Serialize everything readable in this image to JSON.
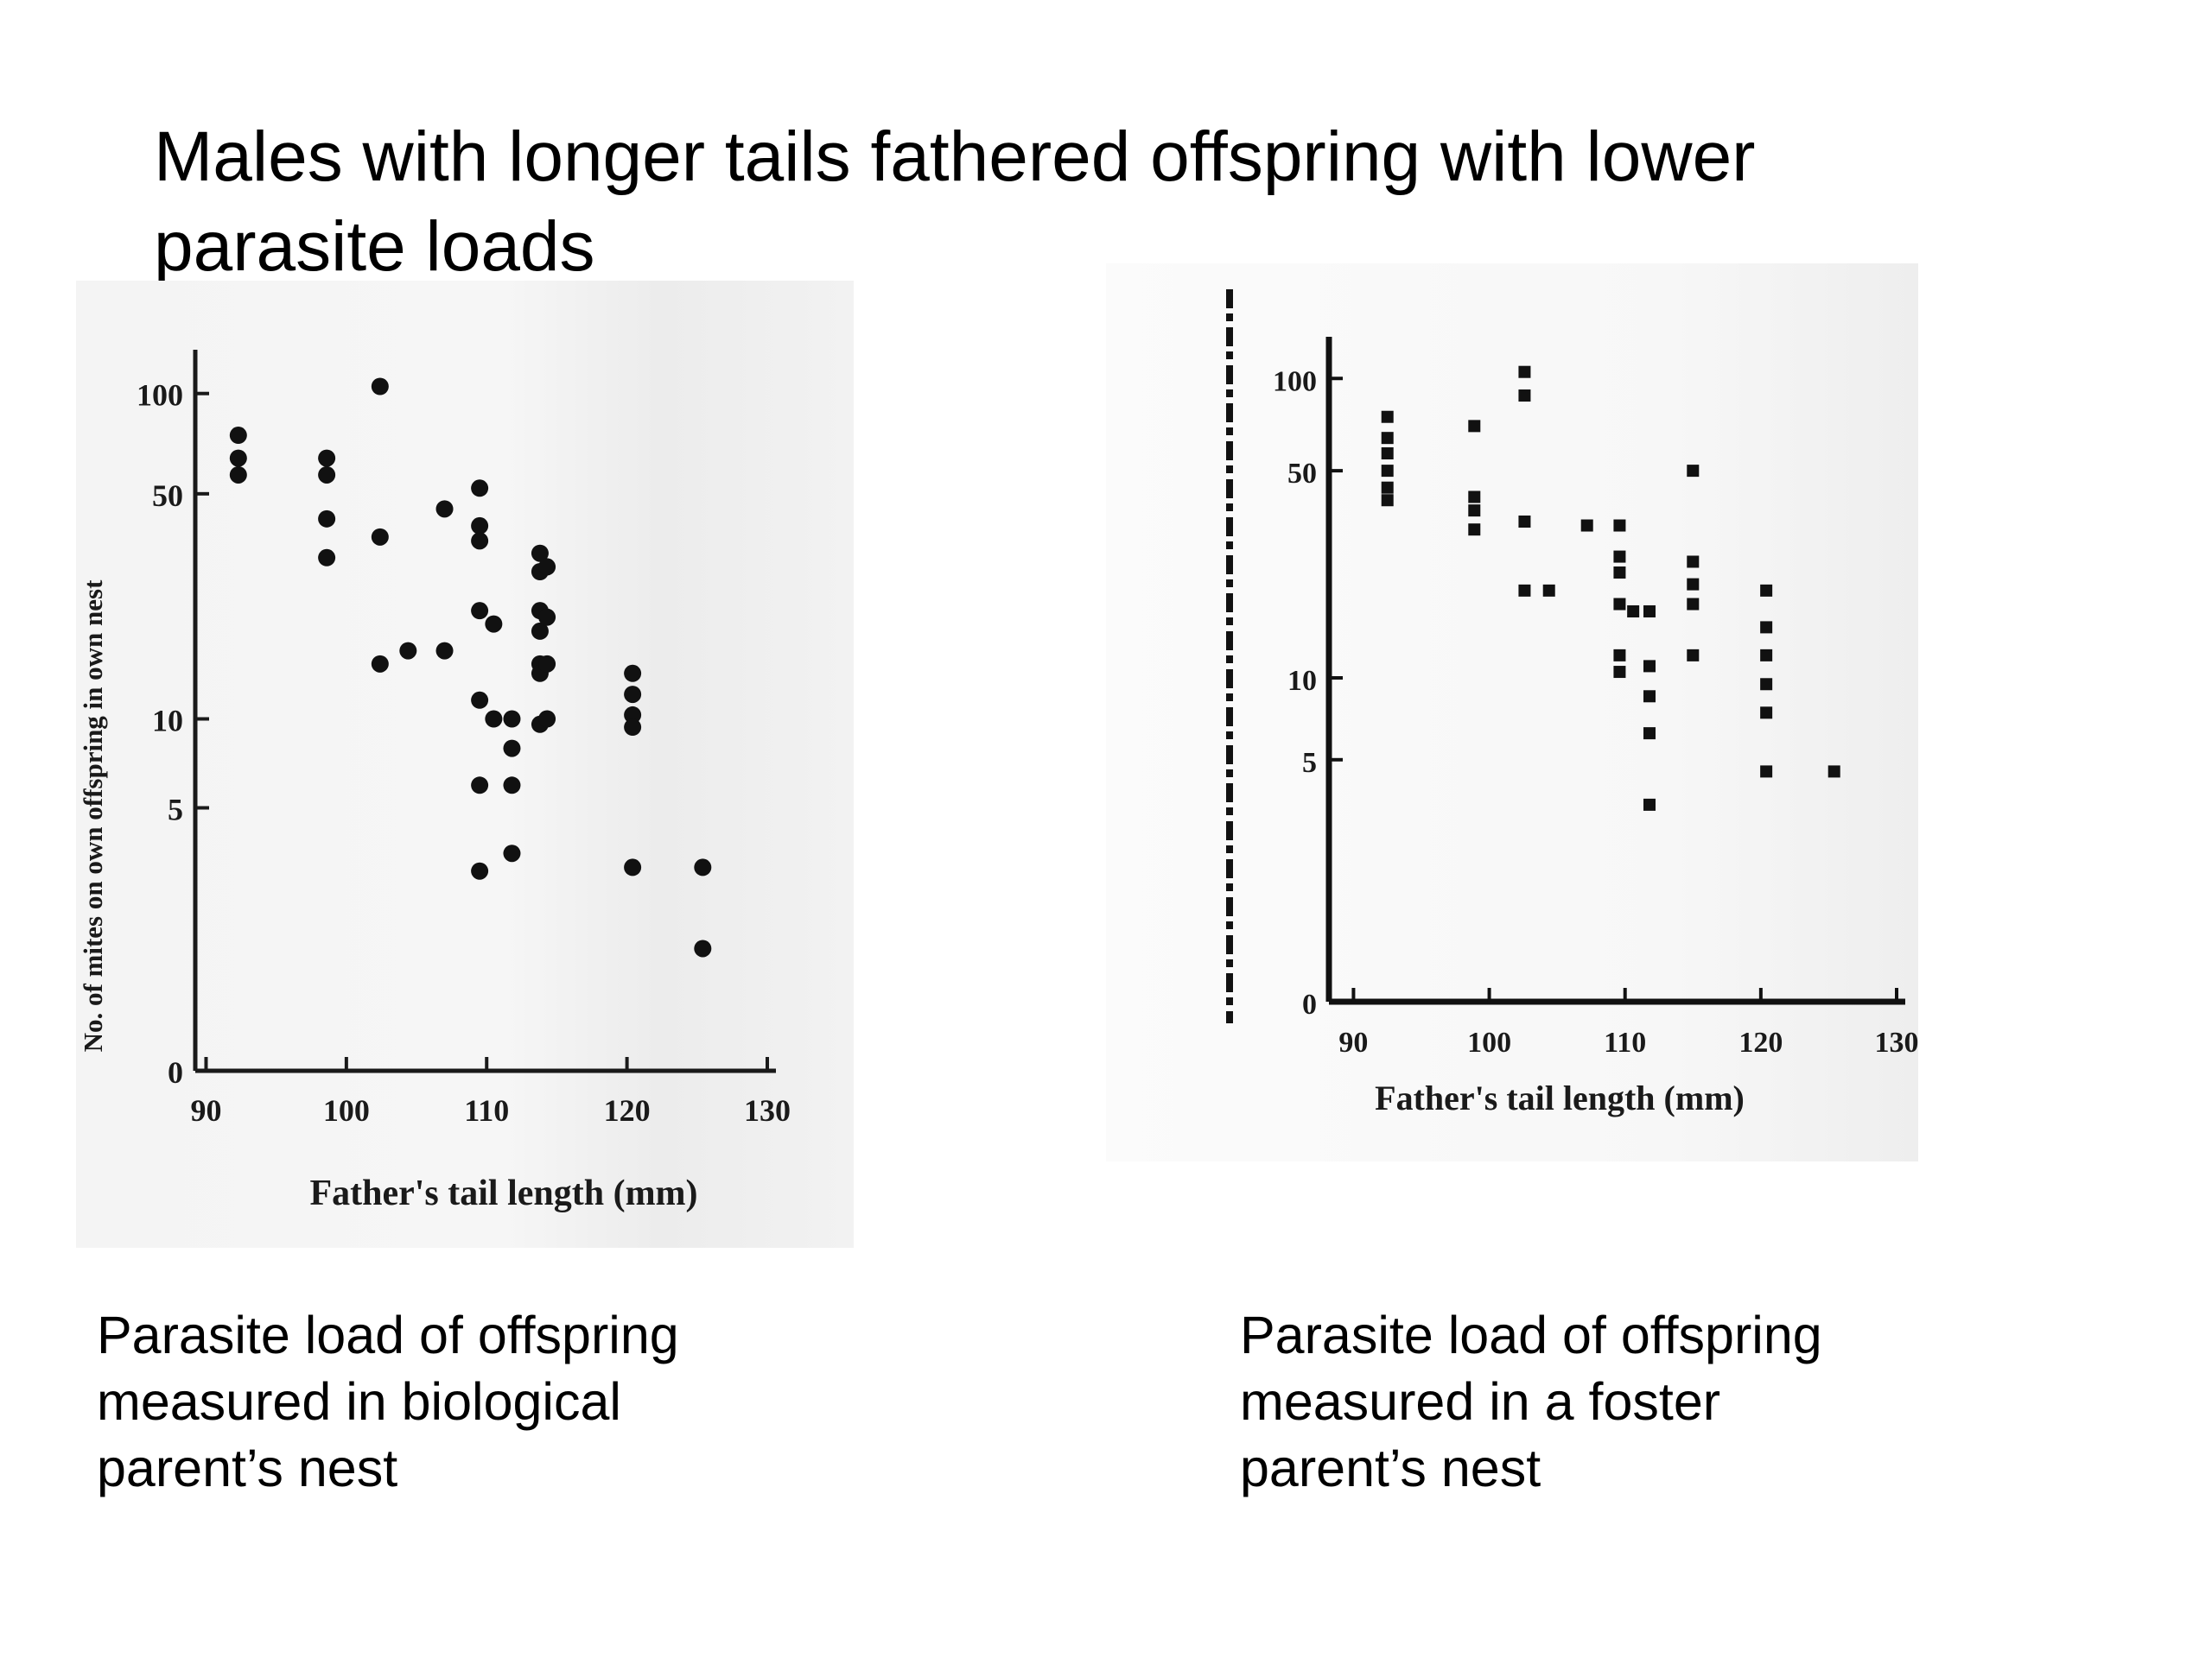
{
  "slide": {
    "title": "Males with longer tails fathered offspring with lower parasite loads"
  },
  "captions": {
    "left": "Parasite load of offspring\nmeasured in biological\nparent’s nest",
    "right": "Parasite load of offspring\nmeasured in a foster\nparent’s nest"
  },
  "chart_data": [
    {
      "type": "scatter",
      "title": "",
      "xlabel": "Father's tail length (mm)",
      "ylabel": "No. of mites on own offspring in own nest",
      "x_ticks": [
        90,
        100,
        110,
        120,
        130
      ],
      "y_ticks": [
        0,
        5,
        10,
        50,
        100
      ],
      "y_scale": "log(y+1)",
      "xlim": [
        88,
        130
      ],
      "ylim": [
        0,
        120
      ],
      "grid": false,
      "points": [
        {
          "x": 92.3,
          "y": 75
        },
        {
          "x": 92.3,
          "y": 64
        },
        {
          "x": 92.3,
          "y": 57
        },
        {
          "x": 98.6,
          "y": 64
        },
        {
          "x": 98.6,
          "y": 57
        },
        {
          "x": 98.6,
          "y": 42
        },
        {
          "x": 98.6,
          "y": 32
        },
        {
          "x": 102.4,
          "y": 105
        },
        {
          "x": 102.4,
          "y": 37
        },
        {
          "x": 102.4,
          "y": 15
        },
        {
          "x": 104.4,
          "y": 16.5
        },
        {
          "x": 107.0,
          "y": 45
        },
        {
          "x": 107.0,
          "y": 16.5
        },
        {
          "x": 109.5,
          "y": 52
        },
        {
          "x": 109.5,
          "y": 40
        },
        {
          "x": 109.5,
          "y": 36
        },
        {
          "x": 109.5,
          "y": 22
        },
        {
          "x": 109.5,
          "y": 11.5
        },
        {
          "x": 109.5,
          "y": 6
        },
        {
          "x": 109.5,
          "y": 2.9
        },
        {
          "x": 110.5,
          "y": 20
        },
        {
          "x": 110.5,
          "y": 10
        },
        {
          "x": 111.8,
          "y": 10
        },
        {
          "x": 111.8,
          "y": 8
        },
        {
          "x": 111.8,
          "y": 6
        },
        {
          "x": 111.8,
          "y": 3.4
        },
        {
          "x": 113.8,
          "y": 33
        },
        {
          "x": 113.8,
          "y": 29
        },
        {
          "x": 113.8,
          "y": 22
        },
        {
          "x": 113.8,
          "y": 19
        },
        {
          "x": 113.8,
          "y": 15
        },
        {
          "x": 113.8,
          "y": 14
        },
        {
          "x": 113.8,
          "y": 9.6
        },
        {
          "x": 114.3,
          "y": 30
        },
        {
          "x": 114.3,
          "y": 21
        },
        {
          "x": 114.3,
          "y": 15
        },
        {
          "x": 114.3,
          "y": 10
        },
        {
          "x": 120.4,
          "y": 14
        },
        {
          "x": 120.4,
          "y": 12
        },
        {
          "x": 120.4,
          "y": 10.3
        },
        {
          "x": 120.4,
          "y": 9.4
        },
        {
          "x": 120.4,
          "y": 3
        },
        {
          "x": 125.4,
          "y": 3
        },
        {
          "x": 125.4,
          "y": 1.3
        }
      ]
    },
    {
      "type": "scatter",
      "title": "",
      "xlabel": "Father's tail length (mm)",
      "ylabel": "",
      "x_ticks": [
        90,
        100,
        110,
        120,
        130
      ],
      "y_ticks": [
        0,
        5,
        10,
        50,
        100
      ],
      "y_scale": "log(y+1)",
      "xlim": [
        88,
        130
      ],
      "ylim": [
        0,
        120
      ],
      "grid": false,
      "points": [
        {
          "x": 92.5,
          "y": 75
        },
        {
          "x": 92.5,
          "y": 64
        },
        {
          "x": 92.5,
          "y": 57
        },
        {
          "x": 92.5,
          "y": 50
        },
        {
          "x": 92.5,
          "y": 44
        },
        {
          "x": 92.5,
          "y": 40
        },
        {
          "x": 98.9,
          "y": 70
        },
        {
          "x": 98.9,
          "y": 41
        },
        {
          "x": 98.9,
          "y": 37
        },
        {
          "x": 98.9,
          "y": 32
        },
        {
          "x": 102.6,
          "y": 105
        },
        {
          "x": 102.6,
          "y": 88
        },
        {
          "x": 102.6,
          "y": 34
        },
        {
          "x": 102.6,
          "y": 20
        },
        {
          "x": 104.4,
          "y": 20
        },
        {
          "x": 107.2,
          "y": 33
        },
        {
          "x": 109.6,
          "y": 33
        },
        {
          "x": 109.6,
          "y": 26
        },
        {
          "x": 109.6,
          "y": 23
        },
        {
          "x": 109.6,
          "y": 18
        },
        {
          "x": 109.6,
          "y": 12
        },
        {
          "x": 109.6,
          "y": 10.5
        },
        {
          "x": 110.6,
          "y": 17
        },
        {
          "x": 111.8,
          "y": 17
        },
        {
          "x": 111.8,
          "y": 11
        },
        {
          "x": 111.8,
          "y": 8.6
        },
        {
          "x": 111.8,
          "y": 6.3
        },
        {
          "x": 111.8,
          "y": 3.3
        },
        {
          "x": 115.0,
          "y": 50
        },
        {
          "x": 115.0,
          "y": 25
        },
        {
          "x": 115.0,
          "y": 21
        },
        {
          "x": 115.0,
          "y": 18
        },
        {
          "x": 115.0,
          "y": 12
        },
        {
          "x": 120.4,
          "y": 20
        },
        {
          "x": 120.4,
          "y": 15
        },
        {
          "x": 120.4,
          "y": 12
        },
        {
          "x": 120.4,
          "y": 9.5
        },
        {
          "x": 120.4,
          "y": 7.5
        },
        {
          "x": 120.4,
          "y": 4.5
        },
        {
          "x": 125.4,
          "y": 4.5
        }
      ]
    }
  ]
}
